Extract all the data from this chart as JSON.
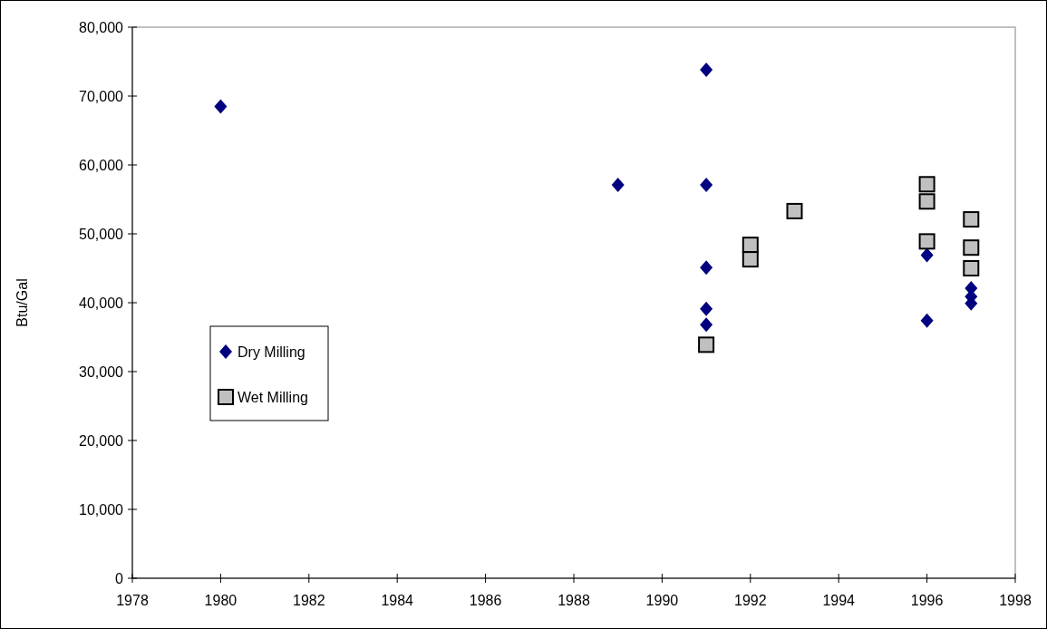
{
  "chart_data": {
    "type": "scatter",
    "ylabel": "Btu/Gal",
    "xlim": [
      1978,
      1998
    ],
    "xticks": [
      1978,
      1980,
      1982,
      1984,
      1986,
      1988,
      1990,
      1992,
      1994,
      1996,
      1998
    ],
    "ylim": [
      0,
      80000
    ],
    "yticks": [
      {
        "value": 0,
        "label": "0"
      },
      {
        "value": 10000,
        "label": "10,000"
      },
      {
        "value": 20000,
        "label": "20,000"
      },
      {
        "value": 30000,
        "label": "30,000"
      },
      {
        "value": 40000,
        "label": "40,000"
      },
      {
        "value": 50000,
        "label": "50,000"
      },
      {
        "value": 60000,
        "label": "60,000"
      },
      {
        "value": 70000,
        "label": "70,000"
      },
      {
        "value": 80000,
        "label": "80,000"
      }
    ],
    "grid": false,
    "legend": "left",
    "series": [
      {
        "name": "Dry Milling",
        "color": "#000080",
        "marker": "diamond",
        "x": [
          1980,
          1989,
          1991,
          1991,
          1991,
          1991,
          1991,
          1996,
          1996,
          1997,
          1997,
          1997
        ],
        "values": [
          68500,
          57100,
          73800,
          57100,
          45100,
          39100,
          36800,
          46900,
          37400,
          42100,
          40900,
          39900
        ]
      },
      {
        "name": "Wet Milling",
        "color": "#c0c0c0",
        "marker": "square",
        "x": [
          1991,
          1992,
          1992,
          1993,
          1996,
          1996,
          1996,
          1997,
          1997,
          1997
        ],
        "values": [
          33900,
          48400,
          46300,
          53300,
          57200,
          54700,
          48900,
          52100,
          48000,
          45000
        ]
      }
    ]
  }
}
